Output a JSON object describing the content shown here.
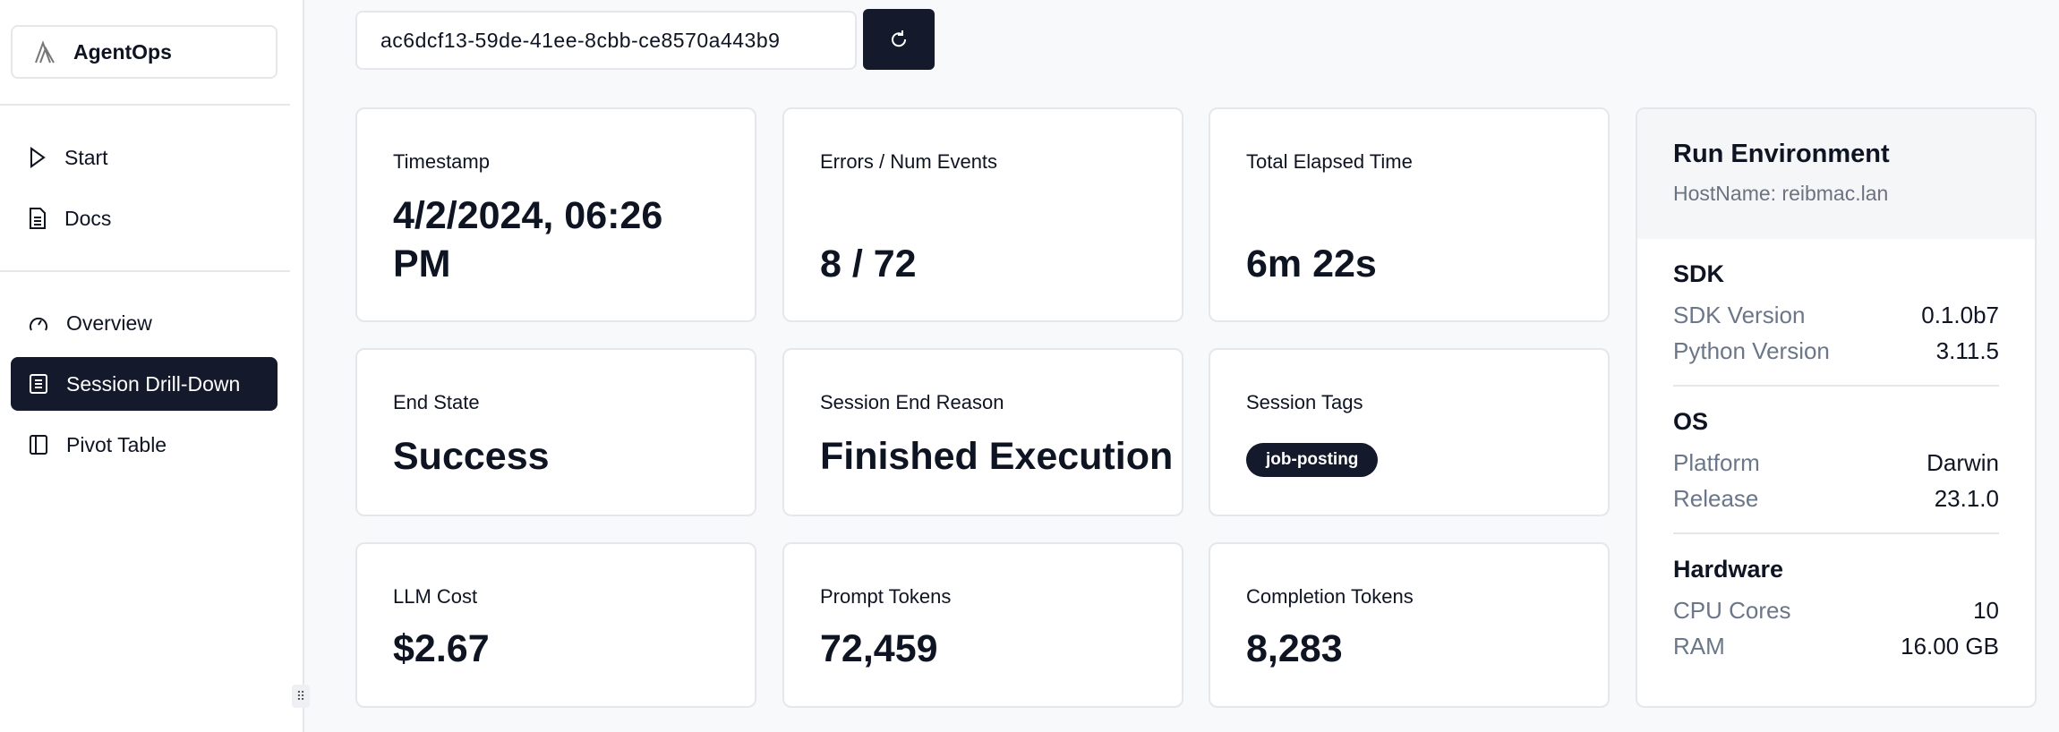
{
  "sidebar": {
    "brand": "AgentOps",
    "items": [
      {
        "label": "Start",
        "icon": "play-icon"
      },
      {
        "label": "Docs",
        "icon": "document-icon"
      },
      {
        "label": "Overview",
        "icon": "gauge-icon"
      },
      {
        "label": "Session Drill-Down",
        "icon": "list-icon",
        "active": true
      },
      {
        "label": "Pivot Table",
        "icon": "panel-icon"
      }
    ]
  },
  "session_id": "ac6dcf13-59de-41ee-8cbb-ce8570a443b9",
  "cards": [
    {
      "label": "Timestamp",
      "value": "4/2/2024, 06:26 PM"
    },
    {
      "label": "Errors / Num Events",
      "value": "8 / 72"
    },
    {
      "label": "Total Elapsed Time",
      "value": "6m 22s"
    },
    {
      "label": "End State",
      "value": "Success"
    },
    {
      "label": "Session End Reason",
      "value": "Finished Execution"
    },
    {
      "label": "Session Tags",
      "tag": "job-posting"
    },
    {
      "label": "LLM Cost",
      "value": "$2.67"
    },
    {
      "label": "Prompt Tokens",
      "value": "72,459"
    },
    {
      "label": "Completion Tokens",
      "value": "8,283"
    }
  ],
  "env": {
    "title": "Run Environment",
    "host": "HostName: reibmac.lan",
    "sdk": {
      "title": "SDK",
      "rows": [
        {
          "k": "SDK Version",
          "v": "0.1.0b7"
        },
        {
          "k": "Python Version",
          "v": "3.11.5"
        }
      ]
    },
    "os": {
      "title": "OS",
      "rows": [
        {
          "k": "Platform",
          "v": "Darwin"
        },
        {
          "k": "Release",
          "v": "23.1.0"
        }
      ]
    },
    "hw": {
      "title": "Hardware",
      "rows": [
        {
          "k": "CPU Cores",
          "v": "10"
        },
        {
          "k": "RAM",
          "v": "16.00 GB"
        }
      ]
    }
  }
}
